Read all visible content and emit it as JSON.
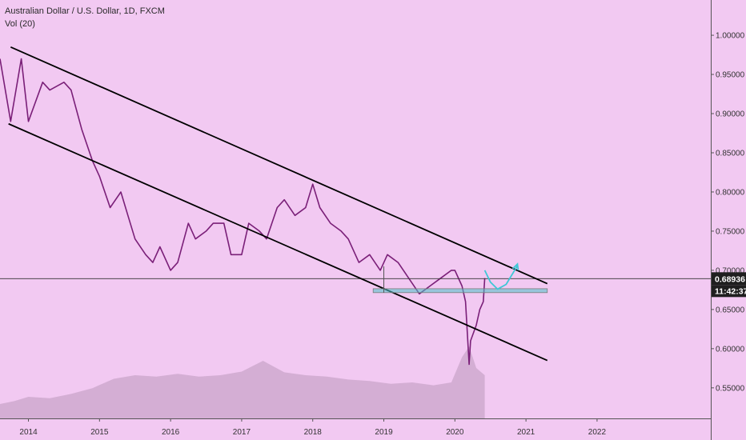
{
  "legend": {
    "title": "Australian Dollar / U.S. Dollar, 1D, FXCM",
    "volume": "Vol (20)"
  },
  "colors": {
    "background": "#f2c9f2",
    "price_line": "#7a1f78",
    "price_badge": "#1f1f1f",
    "support_zone": "#4fc1c9",
    "projection": "#3fc7d6",
    "volume_bars": "#cfa9cf",
    "channel_lines": "#000000"
  },
  "chart_data": {
    "type": "line",
    "title": "Australian Dollar / U.S. Dollar, 1D, FXCM",
    "series_name": "",
    "xlabel": "",
    "ylabel": "",
    "x_ticks": [
      "2014",
      "2015",
      "2016",
      "2017",
      "2018",
      "2019",
      "2020",
      "2021",
      "2022"
    ],
    "y_ticks": [
      "1.00000",
      "0.95000",
      "0.90000",
      "0.85000",
      "0.80000",
      "0.75000",
      "0.70000",
      "0.65000",
      "0.60000",
      "0.55000"
    ],
    "xlim": [
      2013.6,
      2023.6
    ],
    "ylim": [
      0.511,
      1.045
    ],
    "grid": false,
    "price": {
      "x": [
        2013.6,
        2013.75,
        2013.9,
        2014.0,
        2014.2,
        2014.3,
        2014.5,
        2014.6,
        2014.75,
        2014.9,
        2015.0,
        2015.15,
        2015.3,
        2015.4,
        2015.5,
        2015.65,
        2015.75,
        2015.85,
        2016.0,
        2016.1,
        2016.25,
        2016.35,
        2016.5,
        2016.6,
        2016.75,
        2016.85,
        2017.0,
        2017.1,
        2017.25,
        2017.35,
        2017.5,
        2017.6,
        2017.75,
        2017.9,
        2018.0,
        2018.1,
        2018.25,
        2018.4,
        2018.5,
        2018.65,
        2018.8,
        2018.95,
        2019.05,
        2019.2,
        2019.35,
        2019.5,
        2019.65,
        2019.8,
        2019.95,
        2020.0,
        2020.1,
        2020.15,
        2020.2,
        2020.22,
        2020.3,
        2020.35,
        2020.4,
        2020.42
      ],
      "y": [
        0.97,
        0.89,
        0.97,
        0.89,
        0.94,
        0.93,
        0.94,
        0.93,
        0.88,
        0.84,
        0.82,
        0.78,
        0.8,
        0.77,
        0.74,
        0.72,
        0.71,
        0.73,
        0.7,
        0.71,
        0.76,
        0.74,
        0.75,
        0.76,
        0.76,
        0.72,
        0.72,
        0.76,
        0.75,
        0.74,
        0.78,
        0.79,
        0.77,
        0.78,
        0.81,
        0.78,
        0.76,
        0.75,
        0.74,
        0.71,
        0.72,
        0.7,
        0.72,
        0.71,
        0.69,
        0.67,
        0.68,
        0.69,
        0.7,
        0.7,
        0.68,
        0.66,
        0.58,
        0.61,
        0.63,
        0.65,
        0.66,
        0.69
      ]
    },
    "volume": {
      "x": [
        2013.6,
        2013.8,
        2014.0,
        2014.3,
        2014.6,
        2014.9,
        2015.2,
        2015.5,
        2015.8,
        2016.1,
        2016.4,
        2016.7,
        2017.0,
        2017.3,
        2017.6,
        2017.9,
        2018.2,
        2018.5,
        2018.8,
        2019.1,
        2019.4,
        2019.7,
        2019.95,
        2020.1,
        2020.2,
        2020.3,
        2020.42
      ],
      "v": [
        0.2,
        0.24,
        0.3,
        0.28,
        0.34,
        0.42,
        0.55,
        0.6,
        0.58,
        0.62,
        0.58,
        0.6,
        0.65,
        0.8,
        0.64,
        0.6,
        0.58,
        0.54,
        0.52,
        0.48,
        0.5,
        0.46,
        0.5,
        0.85,
        1.0,
        0.7,
        0.6
      ]
    },
    "annotations": {
      "channel_upper": {
        "x": [
          2013.75,
          2021.3
        ],
        "y": [
          0.985,
          0.683
        ]
      },
      "channel_lower": {
        "x": [
          2013.72,
          2021.3
        ],
        "y": [
          0.887,
          0.585
        ]
      },
      "support_zone": {
        "x": [
          2018.85,
          2021.3
        ],
        "y": [
          0.6715,
          0.6765
        ]
      },
      "support_start_marker": {
        "x": 2019.0
      },
      "projection": {
        "x": [
          2020.42,
          2020.5,
          2020.6,
          2020.72,
          2020.88
        ],
        "y": [
          0.7,
          0.685,
          0.676,
          0.682,
          0.706
        ]
      },
      "current_price_line": {
        "y": 0.68936
      }
    },
    "current_price": {
      "value": "0.68936",
      "timer": "11:42:37"
    }
  }
}
